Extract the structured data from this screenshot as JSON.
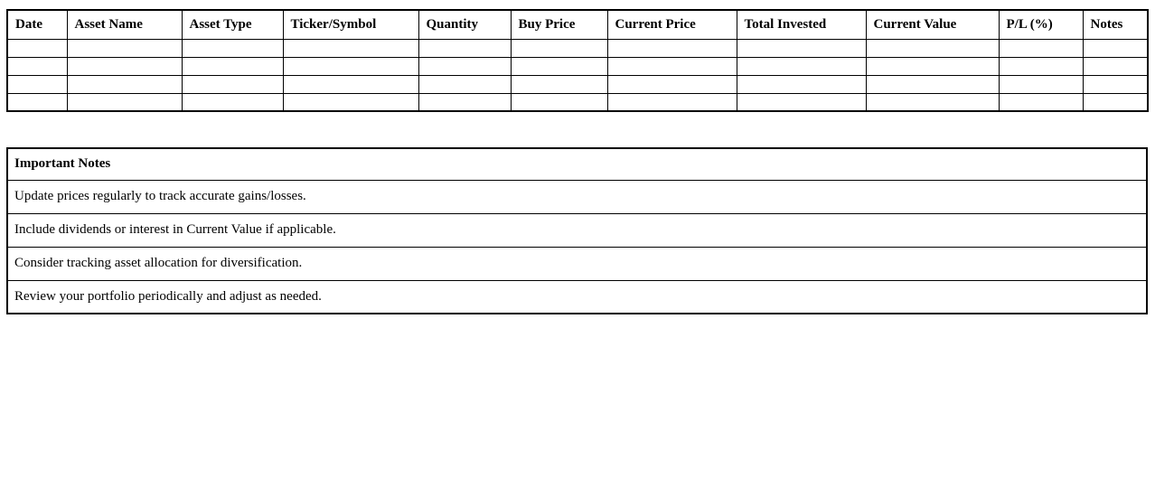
{
  "portfolio_table": {
    "columns": [
      "Date",
      "Asset Name",
      "Asset Type",
      "Ticker/Symbol",
      "Quantity",
      "Buy Price",
      "Current Price",
      "Total Invested",
      "Current Value",
      "P/L (%)",
      "Notes"
    ],
    "empty_row_count": 4
  },
  "notes_section": {
    "title": "Important Notes",
    "items": [
      "Update prices regularly to track accurate gains/losses.",
      "Include dividends or interest in Current Value if applicable.",
      "Consider tracking asset allocation for diversification.",
      "Review your portfolio periodically and adjust as needed."
    ]
  },
  "colors": {
    "border": "#000000",
    "text": "#000000",
    "background": "#ffffff"
  }
}
